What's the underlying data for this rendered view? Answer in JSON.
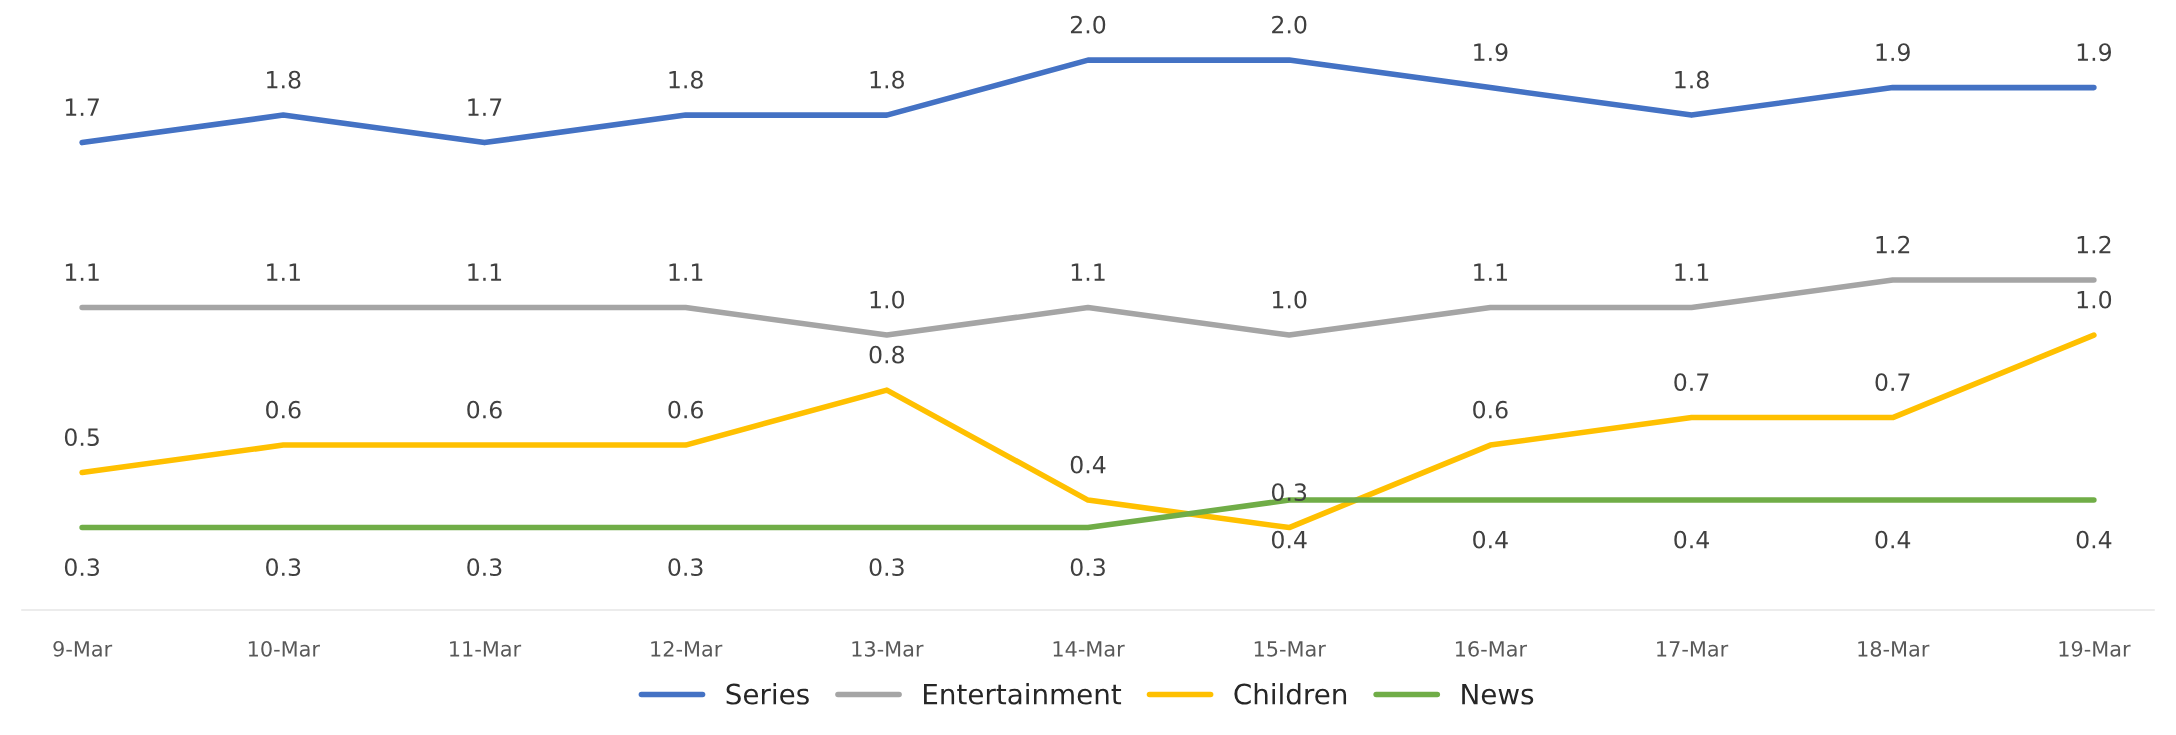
{
  "chart_data": {
    "type": "line",
    "categories": [
      "9-Mar",
      "10-Mar",
      "11-Mar",
      "12-Mar",
      "13-Mar",
      "14-Mar",
      "15-Mar",
      "16-Mar",
      "17-Mar",
      "18-Mar",
      "19-Mar"
    ],
    "series": [
      {
        "name": "Series",
        "color": "#4472c4",
        "values": [
          1.7,
          1.8,
          1.7,
          1.8,
          1.8,
          2.0,
          2.0,
          1.9,
          1.8,
          1.9,
          1.9
        ],
        "value_labels": [
          "1.7",
          "1.8",
          "1.7",
          "1.8",
          "1.8",
          "2.0",
          "2.0",
          "1.9",
          "1.8",
          "1.9",
          "1.9"
        ]
      },
      {
        "name": "Entertainment",
        "color": "#a5a5a5",
        "values": [
          1.1,
          1.1,
          1.1,
          1.1,
          1.0,
          1.1,
          1.0,
          1.1,
          1.1,
          1.2,
          1.2
        ],
        "value_labels": [
          "1.1",
          "1.1",
          "1.1",
          "1.1",
          "1.0",
          "1.1",
          "1.0",
          "1.1",
          "1.1",
          "1.2",
          "1.2"
        ]
      },
      {
        "name": "Children",
        "color": "#ffc000",
        "values": [
          0.5,
          0.6,
          0.6,
          0.6,
          0.8,
          0.4,
          0.3,
          0.6,
          0.7,
          0.7,
          1.0
        ],
        "value_labels": [
          "0.5",
          "0.6",
          "0.6",
          "0.6",
          "0.8",
          "0.4",
          "0.3",
          "0.6",
          "0.7",
          "0.7",
          "1.0"
        ]
      },
      {
        "name": "News",
        "color": "#70ad47",
        "values": [
          0.3,
          0.3,
          0.3,
          0.3,
          0.3,
          0.3,
          0.4,
          0.4,
          0.4,
          0.4,
          0.4
        ],
        "value_labels": [
          "0.3",
          "0.3",
          "0.3",
          "0.3",
          "0.3",
          "0.3",
          "0.4",
          "0.4",
          "0.4",
          "0.4",
          "0.4"
        ]
      }
    ],
    "legend": "bottom",
    "grid": false,
    "marker": "none",
    "line_style": "solid",
    "tick_labels": "x"
  }
}
